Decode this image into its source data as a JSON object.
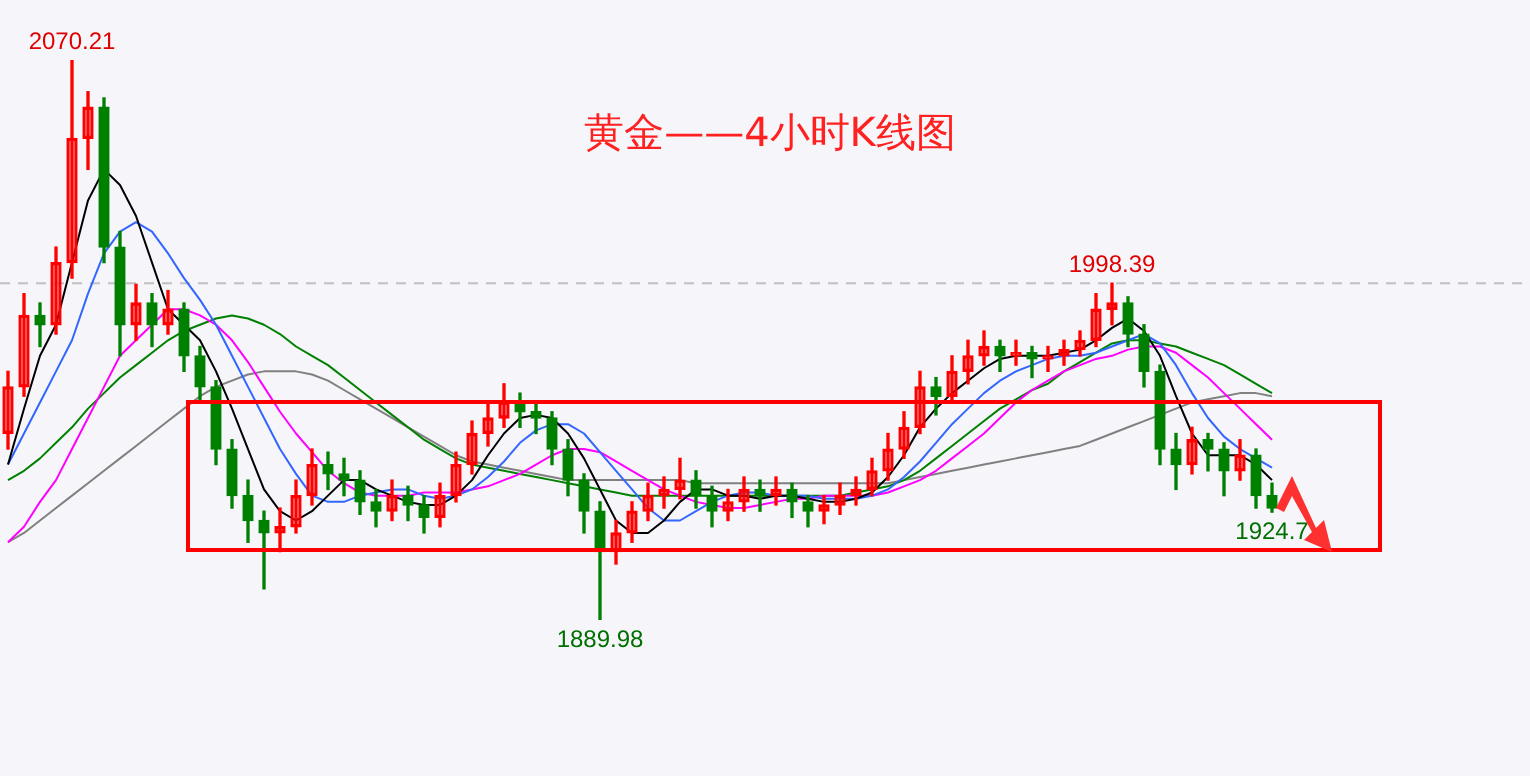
{
  "chart_data": {
    "type": "candlestick",
    "title": "黄金——4小时K线图",
    "categories": [
      null,
      null,
      null,
      null,
      null,
      null,
      null,
      null,
      null,
      null,
      null,
      null,
      null,
      null,
      null,
      null,
      null,
      null,
      null,
      null,
      null,
      null,
      null,
      null,
      null,
      null,
      null,
      null,
      null,
      null,
      null,
      null,
      null,
      null,
      null,
      null,
      null,
      null,
      null,
      null,
      null,
      null,
      null,
      null,
      null,
      null,
      null,
      null,
      null,
      null,
      null,
      null,
      null,
      null,
      null,
      null,
      null,
      null,
      null,
      null,
      null,
      null,
      null,
      null,
      null,
      null,
      null,
      null,
      null,
      null,
      null,
      null,
      null,
      null,
      null,
      null,
      null,
      null,
      null,
      null
    ],
    "ohlc": [
      [
        1950,
        1970,
        1945,
        1965
      ],
      [
        1965,
        1995,
        1962,
        1988
      ],
      [
        1988,
        1992,
        1978,
        1985
      ],
      [
        1985,
        2010,
        1982,
        2005
      ],
      [
        2005,
        2070.21,
        2000,
        2045
      ],
      [
        2045,
        2060,
        2035,
        2055
      ],
      [
        2055,
        2058,
        2005,
        2010
      ],
      [
        2010,
        2015,
        1975,
        1985
      ],
      [
        1985,
        1998,
        1980,
        1992
      ],
      [
        1992,
        1995,
        1978,
        1985
      ],
      [
        1985,
        1996,
        1982,
        1990
      ],
      [
        1990,
        1992,
        1970,
        1975
      ],
      [
        1975,
        1978,
        1960,
        1965
      ],
      [
        1965,
        1967,
        1940,
        1945
      ],
      [
        1945,
        1948,
        1926,
        1930
      ],
      [
        1930,
        1935,
        1915,
        1922
      ],
      [
        1922,
        1925,
        1900,
        1918
      ],
      [
        1918,
        1926,
        1912,
        1920
      ],
      [
        1920,
        1935,
        1918,
        1930
      ],
      [
        1930,
        1945,
        1927,
        1940
      ],
      [
        1940,
        1944,
        1932,
        1937
      ],
      [
        1937,
        1942,
        1930,
        1935
      ],
      [
        1935,
        1938,
        1924,
        1928
      ],
      [
        1928,
        1932,
        1920,
        1925
      ],
      [
        1925,
        1935,
        1922,
        1930
      ],
      [
        1930,
        1933,
        1922,
        1927
      ],
      [
        1927,
        1930,
        1918,
        1923
      ],
      [
        1923,
        1934,
        1920,
        1930
      ],
      [
        1930,
        1944,
        1928,
        1940
      ],
      [
        1940,
        1954,
        1937,
        1950
      ],
      [
        1950,
        1960,
        1946,
        1955
      ],
      [
        1955,
        1966,
        1952,
        1960
      ],
      [
        1960,
        1963,
        1952,
        1957
      ],
      [
        1957,
        1960,
        1950,
        1955
      ],
      [
        1955,
        1957,
        1940,
        1945
      ],
      [
        1945,
        1948,
        1930,
        1935
      ],
      [
        1935,
        1937,
        1918,
        1925
      ],
      [
        1925,
        1928,
        1889.98,
        1912
      ],
      [
        1912,
        1922,
        1908,
        1918
      ],
      [
        1918,
        1928,
        1915,
        1925
      ],
      [
        1925,
        1934,
        1922,
        1930
      ],
      [
        1930,
        1936,
        1926,
        1932
      ],
      [
        1932,
        1942,
        1929,
        1935
      ],
      [
        1935,
        1938,
        1926,
        1930
      ],
      [
        1930,
        1933,
        1920,
        1925
      ],
      [
        1925,
        1932,
        1922,
        1928
      ],
      [
        1928,
        1936,
        1925,
        1932
      ],
      [
        1932,
        1935,
        1925,
        1930
      ],
      [
        1930,
        1936,
        1927,
        1932
      ],
      [
        1932,
        1934,
        1923,
        1928
      ],
      [
        1928,
        1930,
        1920,
        1925
      ],
      [
        1925,
        1930,
        1921,
        1927
      ],
      [
        1927,
        1934,
        1924,
        1930
      ],
      [
        1930,
        1936,
        1927,
        1932
      ],
      [
        1932,
        1942,
        1930,
        1938
      ],
      [
        1938,
        1950,
        1935,
        1945
      ],
      [
        1945,
        1957,
        1942,
        1952
      ],
      [
        1952,
        1970,
        1950,
        1965
      ],
      [
        1965,
        1968,
        1956,
        1962
      ],
      [
        1962,
        1975,
        1960,
        1970
      ],
      [
        1970,
        1980,
        1966,
        1975
      ],
      [
        1975,
        1983,
        1972,
        1978
      ],
      [
        1978,
        1980,
        1970,
        1975
      ],
      [
        1975,
        1980,
        1972,
        1976
      ],
      [
        1976,
        1978,
        1968,
        1974
      ],
      [
        1974,
        1978,
        1970,
        1975
      ],
      [
        1975,
        1980,
        1972,
        1977
      ],
      [
        1977,
        1983,
        1975,
        1980
      ],
      [
        1980,
        1995,
        1978,
        1990
      ],
      [
        1990,
        1998.39,
        1985,
        1992
      ],
      [
        1992,
        1994,
        1978,
        1982
      ],
      [
        1982,
        1985,
        1965,
        1970
      ],
      [
        1970,
        1972,
        1940,
        1945
      ],
      [
        1945,
        1950,
        1932,
        1940
      ],
      [
        1940,
        1952,
        1937,
        1948
      ],
      [
        1948,
        1950,
        1938,
        1945
      ],
      [
        1945,
        1947,
        1930,
        1938
      ],
      [
        1938,
        1948,
        1935,
        1943
      ],
      [
        1943,
        1945,
        1926,
        1930
      ],
      [
        1930,
        1934,
        1924.7,
        1926
      ]
    ],
    "colors": [
      "#ff0000",
      "#ff0000",
      "#008000",
      "#ff0000",
      "#ff0000",
      "#ff0000",
      "#008000",
      "#008000",
      "#ff0000",
      "#008000",
      "#ff0000",
      "#008000",
      "#008000",
      "#008000",
      "#008000",
      "#008000",
      "#008000",
      "#ff0000",
      "#ff0000",
      "#ff0000",
      "#008000",
      "#008000",
      "#008000",
      "#008000",
      "#ff0000",
      "#008000",
      "#008000",
      "#ff0000",
      "#ff0000",
      "#ff0000",
      "#ff0000",
      "#ff0000",
      "#008000",
      "#008000",
      "#008000",
      "#008000",
      "#008000",
      "#008000",
      "#ff0000",
      "#ff0000",
      "#ff0000",
      "#ff0000",
      "#ff0000",
      "#008000",
      "#008000",
      "#ff0000",
      "#ff0000",
      "#008000",
      "#ff0000",
      "#008000",
      "#008000",
      "#ff0000",
      "#ff0000",
      "#ff0000",
      "#ff0000",
      "#ff0000",
      "#ff0000",
      "#ff0000",
      "#008000",
      "#ff0000",
      "#ff0000",
      "#ff0000",
      "#008000",
      "#ff0000",
      "#008000",
      "#ff0000",
      "#ff0000",
      "#ff0000",
      "#ff0000",
      "#ff0000",
      "#008000",
      "#008000",
      "#008000",
      "#008000",
      "#ff0000",
      "#008000",
      "#008000",
      "#ff0000",
      "#008000",
      "#008000"
    ],
    "series": [
      {
        "type": "line",
        "color": "#000000",
        "values": [
          1940,
          1958,
          1975,
          1985,
          2005,
          2025,
          2035,
          2030,
          2020,
          2005,
          1990,
          1985,
          1980,
          1970,
          1958,
          1945,
          1932,
          1925,
          1922,
          1925,
          1930,
          1935,
          1935,
          1932,
          1930,
          1928,
          1927,
          1927,
          1930,
          1935,
          1943,
          1950,
          1955,
          1956,
          1955,
          1950,
          1942,
          1932,
          1922,
          1918,
          1918,
          1922,
          1928,
          1932,
          1932,
          1930,
          1930,
          1929,
          1930,
          1930,
          1929,
          1928,
          1928,
          1929,
          1931,
          1936,
          1943,
          1952,
          1958,
          1963,
          1967,
          1971,
          1974,
          1975,
          1975,
          1975,
          1976,
          1977,
          1980,
          1984,
          1987,
          1983,
          1975,
          1962,
          1950,
          1943,
          1943,
          1943,
          1940,
          1935
        ]
      },
      {
        "type": "line",
        "color": "#3366ff",
        "values": [
          1940,
          1950,
          1960,
          1970,
          1980,
          1995,
          2008,
          2015,
          2018,
          2015,
          2008,
          2000,
          1993,
          1985,
          1975,
          1965,
          1955,
          1945,
          1937,
          1930,
          1928,
          1928,
          1930,
          1931,
          1932,
          1932,
          1930,
          1929,
          1930,
          1932,
          1936,
          1941,
          1947,
          1951,
          1953,
          1953,
          1950,
          1944,
          1938,
          1932,
          1926,
          1922,
          1922,
          1925,
          1928,
          1930,
          1931,
          1931,
          1930,
          1930,
          1930,
          1929,
          1929,
          1929,
          1930,
          1932,
          1936,
          1941,
          1947,
          1953,
          1958,
          1963,
          1967,
          1970,
          1972,
          1974,
          1975,
          1975,
          1976,
          1978,
          1980,
          1982,
          1979,
          1972,
          1963,
          1955,
          1949,
          1945,
          1942,
          1939
        ]
      },
      {
        "type": "line",
        "color": "#ff00ff",
        "values": [
          1915,
          1920,
          1928,
          1935,
          1945,
          1955,
          1965,
          1975,
          1980,
          1985,
          1990,
          1990,
          1988,
          1985,
          1980,
          1973,
          1965,
          1957,
          1950,
          1944,
          1938,
          1934,
          1931,
          1930,
          1930,
          1930,
          1931,
          1931,
          1931,
          1932,
          1933,
          1935,
          1937,
          1940,
          1943,
          1945,
          1945,
          1944,
          1941,
          1938,
          1935,
          1932,
          1930,
          1928,
          1927,
          1926,
          1926,
          1927,
          1928,
          1929,
          1929,
          1930,
          1930,
          1930,
          1930,
          1931,
          1933,
          1935,
          1938,
          1942,
          1946,
          1950,
          1955,
          1960,
          1964,
          1967,
          1970,
          1972,
          1974,
          1975,
          1977,
          1978,
          1978,
          1976,
          1972,
          1968,
          1963,
          1958,
          1953,
          1948
        ]
      },
      {
        "type": "line",
        "color": "#008000",
        "values": [
          1935,
          1938,
          1942,
          1947,
          1952,
          1958,
          1963,
          1968,
          1972,
          1976,
          1980,
          1983,
          1985,
          1987,
          1988,
          1987,
          1985,
          1982,
          1978,
          1975,
          1972,
          1968,
          1964,
          1960,
          1956,
          1952,
          1948,
          1945,
          1942,
          1940,
          1939,
          1938,
          1937,
          1936,
          1935,
          1934,
          1933,
          1932,
          1931,
          1930,
          1930,
          1930,
          1930,
          1930,
          1930,
          1930,
          1930,
          1930,
          1930,
          1930,
          1930,
          1930,
          1930,
          1931,
          1932,
          1933,
          1935,
          1938,
          1942,
          1946,
          1950,
          1954,
          1958,
          1961,
          1964,
          1966,
          1970,
          1973,
          1976,
          1979,
          1980,
          1980,
          1979,
          1978,
          1976,
          1974,
          1972,
          1969,
          1966,
          1963
        ]
      },
      {
        "type": "line",
        "color": "#808080",
        "values": [
          1915,
          1918,
          1922,
          1926,
          1930,
          1934,
          1938,
          1942,
          1946,
          1950,
          1954,
          1958,
          1962,
          1965,
          1967,
          1969,
          1970,
          1970,
          1970,
          1969,
          1967,
          1964,
          1961,
          1958,
          1955,
          1952,
          1949,
          1946,
          1943,
          1941,
          1940,
          1939,
          1938,
          1937,
          1936,
          1935,
          1935,
          1935,
          1935,
          1935,
          1935,
          1935,
          1935,
          1934,
          1934,
          1934,
          1934,
          1934,
          1934,
          1934,
          1934,
          1934,
          1934,
          1934,
          1934,
          1934,
          1935,
          1936,
          1937,
          1938,
          1939,
          1940,
          1941,
          1942,
          1943,
          1944,
          1945,
          1946,
          1948,
          1950,
          1952,
          1954,
          1956,
          1958,
          1960,
          1961,
          1962,
          1963,
          1963,
          1962
        ]
      }
    ],
    "ref_lines": [
      {
        "axis": "y",
        "value": 1998.39,
        "color": "#c0c0c0",
        "line_style": "dashed"
      }
    ],
    "annotations": [
      {
        "text": "2070.21",
        "y": 2070.21
      },
      {
        "text": "1998.39",
        "y": 1998.39
      },
      {
        "text": "1889.98",
        "y": 1889.98
      },
      {
        "text": "1924.7",
        "y": 1924.7
      }
    ]
  }
}
